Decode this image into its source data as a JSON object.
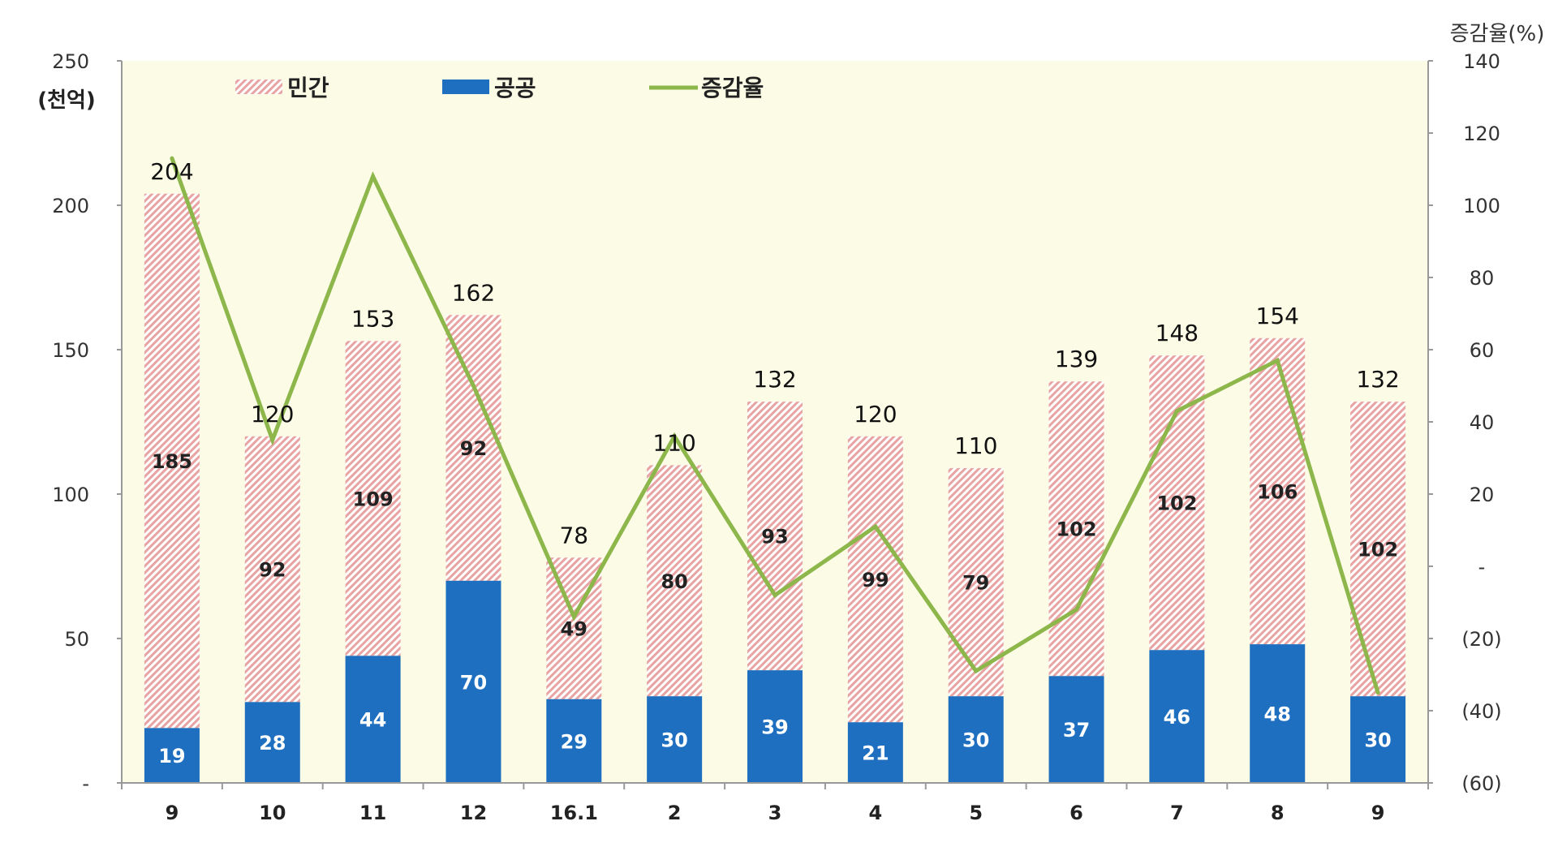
{
  "chart_data": {
    "type": "bar",
    "categories": [
      "9",
      "10",
      "11",
      "12",
      "16.1",
      "2",
      "3",
      "4",
      "5",
      "6",
      "7",
      "8",
      "9"
    ],
    "series": [
      {
        "name": "공공",
        "kind": "stacked-bar",
        "values": [
          19,
          28,
          44,
          70,
          29,
          30,
          39,
          21,
          30,
          37,
          46,
          48,
          30
        ],
        "color": "#1f6fc1"
      },
      {
        "name": "민간",
        "kind": "stacked-bar",
        "values": [
          185,
          92,
          109,
          92,
          49,
          80,
          93,
          99,
          79,
          102,
          102,
          106,
          102
        ],
        "color": "#e8a3a3"
      },
      {
        "name": "증감율",
        "kind": "line",
        "axis": "right",
        "values": [
          113,
          35,
          108,
          50,
          -14,
          36,
          -8,
          11,
          -29,
          -12,
          43,
          57,
          -35
        ],
        "color": "#8db64b"
      }
    ],
    "totals": [
      204,
      120,
      153,
      162,
      78,
      110,
      132,
      120,
      110,
      139,
      148,
      154,
      132
    ],
    "left_axis": {
      "unit": "(천억)",
      "ylim": [
        0,
        250
      ],
      "ticks": [
        {
          "value": 0,
          "label": "-"
        },
        {
          "value": 50,
          "label": "50"
        },
        {
          "value": 100,
          "label": "100"
        },
        {
          "value": 150,
          "label": "150"
        },
        {
          "value": 200,
          "label": "200"
        },
        {
          "value": 250,
          "label": "250"
        }
      ]
    },
    "right_axis": {
      "unit": "증감율(%)",
      "ylim": [
        -60,
        140
      ],
      "ticks": [
        {
          "value": -60,
          "label": "(60)"
        },
        {
          "value": -40,
          "label": "(40)"
        },
        {
          "value": -20,
          "label": "(20)"
        },
        {
          "value": 0,
          "label": "-"
        },
        {
          "value": 20,
          "label": "20"
        },
        {
          "value": 40,
          "label": "40"
        },
        {
          "value": 60,
          "label": "60"
        },
        {
          "value": 80,
          "label": "80"
        },
        {
          "value": 100,
          "label": "100"
        },
        {
          "value": 120,
          "label": "120"
        },
        {
          "value": 140,
          "label": "140"
        }
      ]
    },
    "legend": {
      "placement": "top-left",
      "items": [
        {
          "label": "민간",
          "swatch": "hatch"
        },
        {
          "label": "공공",
          "swatch": "solid"
        },
        {
          "label": "증감율",
          "swatch": "line"
        }
      ]
    },
    "colors": {
      "plot_background": "#fbfbe6",
      "private_hatch": "#e8a3a3",
      "public_fill": "#1f6fc1",
      "line": "#8db64b",
      "axis": "#999999"
    },
    "grid": false
  }
}
